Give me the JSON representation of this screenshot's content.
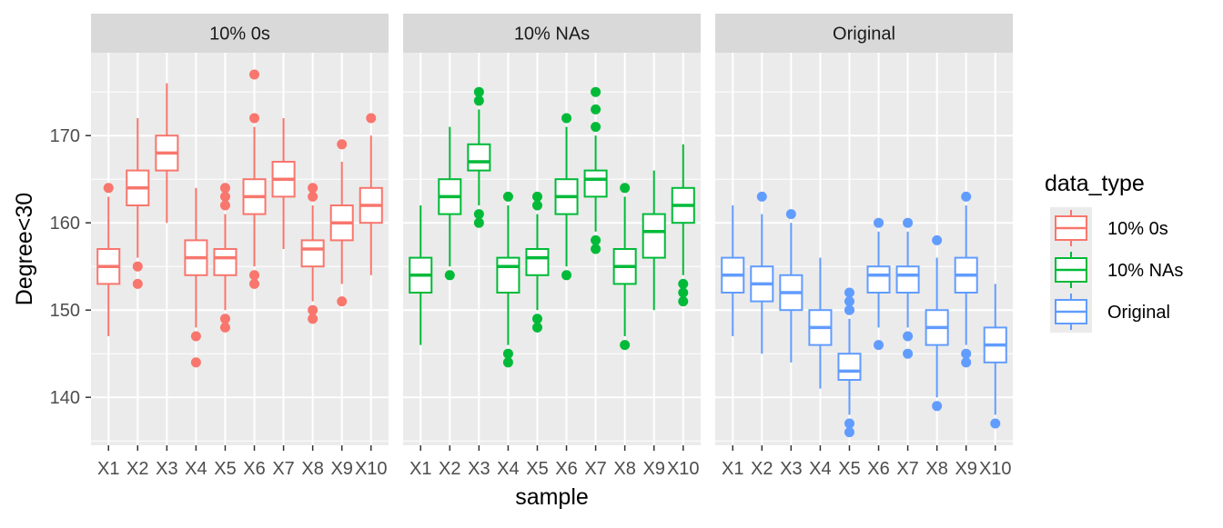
{
  "chart_data": {
    "type": "boxplot",
    "facet_variable": "data_type",
    "categories": [
      "X1",
      "X2",
      "X3",
      "X4",
      "X5",
      "X6",
      "X7",
      "X8",
      "X9",
      "X10"
    ],
    "xlabel": "sample",
    "ylabel": "Degree<30",
    "ylim": [
      134.5,
      179.5
    ],
    "yticks": [
      140,
      150,
      160,
      170
    ],
    "grid": true,
    "legend": {
      "title": "data_type",
      "position": "right",
      "entries": [
        "10% 0s",
        "10% NAs",
        "Original"
      ]
    },
    "colors": {
      "10% 0s": "#F8766D",
      "10% NAs": "#00BA38",
      "Original": "#619CFF",
      "panel_bg": "#EBEBEB",
      "strip_bg": "#D9D9D9",
      "grid": "#FFFFFF"
    },
    "panels": [
      {
        "label": "10% 0s",
        "series": "10% 0s",
        "boxes": [
          {
            "category": "X1",
            "whisker_low": 147,
            "q1": 153,
            "median": 155,
            "q3": 157,
            "whisker_high": 163,
            "outliers": [
              164
            ]
          },
          {
            "category": "X2",
            "whisker_low": 156,
            "q1": 162,
            "median": 164,
            "q3": 166,
            "whisker_high": 172,
            "outliers": [
              155,
              153
            ]
          },
          {
            "category": "X3",
            "whisker_low": 160,
            "q1": 166,
            "median": 168,
            "q3": 170,
            "whisker_high": 176,
            "outliers": []
          },
          {
            "category": "X4",
            "whisker_low": 148,
            "q1": 154,
            "median": 156,
            "q3": 158,
            "whisker_high": 164,
            "outliers": [
              147,
              144
            ]
          },
          {
            "category": "X5",
            "whisker_low": 150,
            "q1": 154,
            "median": 156,
            "q3": 157,
            "whisker_high": 161,
            "outliers": [
              164,
              163,
              162,
              149,
              148
            ]
          },
          {
            "category": "X6",
            "whisker_low": 155,
            "q1": 161,
            "median": 163,
            "q3": 165,
            "whisker_high": 171,
            "outliers": [
              177,
              172,
              154,
              153
            ]
          },
          {
            "category": "X7",
            "whisker_low": 157,
            "q1": 163,
            "median": 165,
            "q3": 167,
            "whisker_high": 172,
            "outliers": []
          },
          {
            "category": "X8",
            "whisker_low": 151,
            "q1": 155,
            "median": 157,
            "q3": 158,
            "whisker_high": 162,
            "outliers": [
              164,
              163,
              150,
              149
            ]
          },
          {
            "category": "X9",
            "whisker_low": 153,
            "q1": 158,
            "median": 160,
            "q3": 162,
            "whisker_high": 167,
            "outliers": [
              169,
              151
            ]
          },
          {
            "category": "X10",
            "whisker_low": 154,
            "q1": 160,
            "median": 162,
            "q3": 164,
            "whisker_high": 170,
            "outliers": [
              172
            ]
          }
        ]
      },
      {
        "label": "10% NAs",
        "series": "10% NAs",
        "boxes": [
          {
            "category": "X1",
            "whisker_low": 146,
            "q1": 152,
            "median": 154,
            "q3": 156,
            "whisker_high": 162,
            "outliers": []
          },
          {
            "category": "X2",
            "whisker_low": 155,
            "q1": 161,
            "median": 163,
            "q3": 165,
            "whisker_high": 171,
            "outliers": [
              154
            ]
          },
          {
            "category": "X3",
            "whisker_low": 162,
            "q1": 166,
            "median": 167,
            "q3": 169,
            "whisker_high": 173,
            "outliers": [
              175,
              174,
              161,
              160
            ]
          },
          {
            "category": "X4",
            "whisker_low": 146,
            "q1": 152,
            "median": 155,
            "q3": 156,
            "whisker_high": 162,
            "outliers": [
              163,
              145,
              144
            ]
          },
          {
            "category": "X5",
            "whisker_low": 150,
            "q1": 154,
            "median": 156,
            "q3": 157,
            "whisker_high": 161,
            "outliers": [
              163,
              162,
              149,
              148
            ]
          },
          {
            "category": "X6",
            "whisker_low": 155,
            "q1": 161,
            "median": 163,
            "q3": 165,
            "whisker_high": 171,
            "outliers": [
              172,
              154
            ]
          },
          {
            "category": "X7",
            "whisker_low": 159,
            "q1": 163,
            "median": 165,
            "q3": 166,
            "whisker_high": 170,
            "outliers": [
              175,
              173,
              171,
              158,
              157
            ]
          },
          {
            "category": "X8",
            "whisker_low": 147,
            "q1": 153,
            "median": 155,
            "q3": 157,
            "whisker_high": 163,
            "outliers": [
              164,
              146
            ]
          },
          {
            "category": "X9",
            "whisker_low": 150,
            "q1": 156,
            "median": 159,
            "q3": 161,
            "whisker_high": 166,
            "outliers": []
          },
          {
            "category": "X10",
            "whisker_low": 154,
            "q1": 160,
            "median": 162,
            "q3": 164,
            "whisker_high": 169,
            "outliers": [
              153,
              152,
              151
            ]
          }
        ]
      },
      {
        "label": "Original",
        "series": "Original",
        "boxes": [
          {
            "category": "X1",
            "whisker_low": 147,
            "q1": 152,
            "median": 154,
            "q3": 156,
            "whisker_high": 162,
            "outliers": []
          },
          {
            "category": "X2",
            "whisker_low": 145,
            "q1": 151,
            "median": 153,
            "q3": 155,
            "whisker_high": 161,
            "outliers": [
              163
            ]
          },
          {
            "category": "X3",
            "whisker_low": 144,
            "q1": 150,
            "median": 152,
            "q3": 154,
            "whisker_high": 160,
            "outliers": [
              161
            ]
          },
          {
            "category": "X4",
            "whisker_low": 141,
            "q1": 146,
            "median": 148,
            "q3": 150,
            "whisker_high": 156,
            "outliers": []
          },
          {
            "category": "X5",
            "whisker_low": 138,
            "q1": 142,
            "median": 143,
            "q3": 145,
            "whisker_high": 149,
            "outliers": [
              152,
              151,
              150,
              137,
              136
            ]
          },
          {
            "category": "X6",
            "whisker_low": 148,
            "q1": 152,
            "median": 154,
            "q3": 155,
            "whisker_high": 159,
            "outliers": [
              160,
              146
            ]
          },
          {
            "category": "X7",
            "whisker_low": 148,
            "q1": 152,
            "median": 154,
            "q3": 155,
            "whisker_high": 159,
            "outliers": [
              160,
              147,
              145
            ]
          },
          {
            "category": "X8",
            "whisker_low": 140,
            "q1": 146,
            "median": 148,
            "q3": 150,
            "whisker_high": 156,
            "outliers": [
              158,
              139
            ]
          },
          {
            "category": "X9",
            "whisker_low": 146,
            "q1": 152,
            "median": 154,
            "q3": 156,
            "whisker_high": 162,
            "outliers": [
              163,
              145,
              144
            ]
          },
          {
            "category": "X10",
            "whisker_low": 138,
            "q1": 144,
            "median": 146,
            "q3": 148,
            "whisker_high": 153,
            "outliers": [
              137
            ]
          }
        ]
      }
    ]
  }
}
